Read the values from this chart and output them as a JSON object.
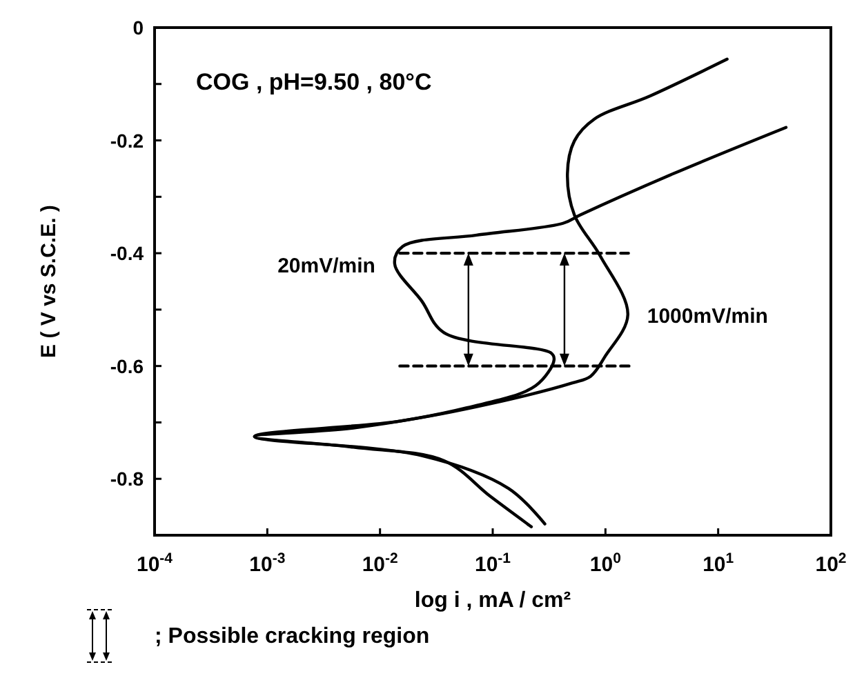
{
  "chart_data": {
    "type": "line",
    "title": "COG , pH=9.50 , 80°C",
    "xlabel": "log i , mA / cm²",
    "ylabel": "E  ( V vs S.C.E. )",
    "log": "x",
    "xlim": [
      0.0001,
      100
    ],
    "ylim": [
      -0.9,
      0
    ],
    "marker": "none",
    "line_style": "solid",
    "grid": false,
    "xticks": [
      {
        "value": 0.0001,
        "label": "10$^{-4}$"
      },
      {
        "value": 0.001,
        "label": "10$^{-3}$"
      },
      {
        "value": 0.01,
        "label": "10$^{-2}$"
      },
      {
        "value": 0.1,
        "label": "10$^{-1}$"
      },
      {
        "value": 1,
        "label": "10$^{0}$"
      },
      {
        "value": 10,
        "label": "10$^{1}$"
      },
      {
        "value": 100,
        "label": "10$^{2}$"
      }
    ],
    "yticks": [
      0,
      {
        "value": -0.1,
        "label": null
      },
      {
        "value": -0.2,
        "label": "-0.2"
      },
      {
        "value": -0.3,
        "label": null
      },
      {
        "value": -0.4,
        "label": "-0.4"
      },
      {
        "value": -0.5,
        "label": null
      },
      {
        "value": -0.6,
        "label": "-0.6"
      },
      {
        "value": -0.7,
        "label": null
      },
      {
        "value": -0.8,
        "label": "-0.8"
      }
    ],
    "series": [
      {
        "name": "20mV/min",
        "color": "#000000",
        "x": [
          0.22,
          0.095,
          0.037,
          0.0058,
          0.00077,
          0.0058,
          0.059,
          0.24,
          0.35,
          0.33,
          0.037,
          0.0235,
          0.0135,
          0.0159,
          0.072,
          0.42,
          0.6,
          4.0,
          40
        ],
        "values": [
          -0.885,
          -0.831,
          -0.768,
          -0.744,
          -0.725,
          -0.71,
          -0.674,
          -0.635,
          -0.589,
          -0.577,
          -0.541,
          -0.485,
          -0.419,
          -0.388,
          -0.368,
          -0.347,
          -0.332,
          -0.259,
          -0.177
        ]
      },
      {
        "name": "1000mV/min",
        "color": "#000000",
        "x": [
          0.29,
          0.138,
          0.0235,
          0.00077,
          0.0146,
          0.095,
          0.51,
          0.74,
          1.0,
          1.58,
          0.9,
          0.53,
          0.46,
          0.53,
          0.8,
          2.5,
          12
        ],
        "values": [
          -0.88,
          -0.817,
          -0.759,
          -0.725,
          -0.698,
          -0.667,
          -0.63,
          -0.618,
          -0.582,
          -0.509,
          -0.405,
          -0.332,
          -0.259,
          -0.201,
          -0.162,
          -0.121,
          -0.056
        ]
      },
      {
        "color": "#000000",
        "line_style": "dashed",
        "x": [
          0.015,
          1.6
        ],
        "values": [
          -0.4,
          -0.4
        ]
      },
      {
        "color": "#000000",
        "line_style": "dashed",
        "x": [
          0.015,
          1.7
        ],
        "values": [
          -0.6,
          -0.6
        ]
      }
    ],
    "annotations": [
      "; Possible cracking region"
    ]
  }
}
